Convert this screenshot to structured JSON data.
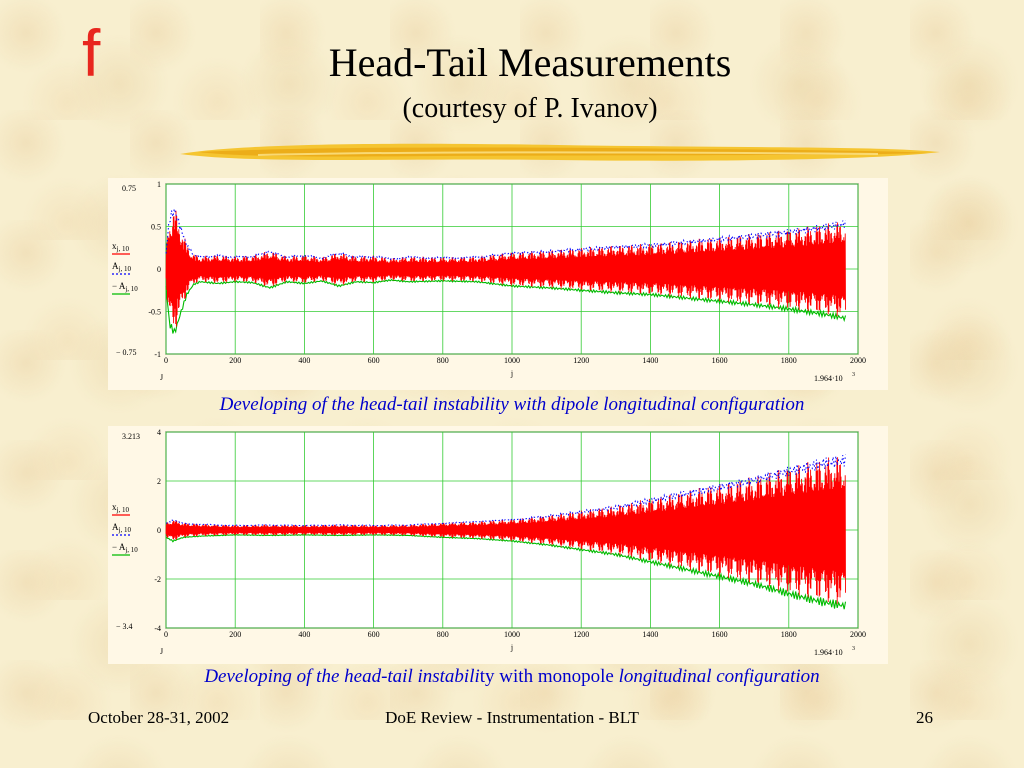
{
  "slide": {
    "title": "Head-Tail Measurements",
    "subtitle": "(courtesy of P. Ivanov)",
    "page_number": "26",
    "footer_left": "October 28-31, 2002",
    "footer_center": "DoE Review - Instrumentation - BLT"
  },
  "colors": {
    "signal": "#ff0000",
    "envelope_upper": "#0000ff",
    "envelope_lower": "#00bb00",
    "grid": "#33cc33",
    "caption": "#0000cc",
    "logo": "#e8261e"
  },
  "icons": {
    "logo": "f-logo-icon"
  },
  "chart_data": [
    {
      "type": "line",
      "caption": "Developing of the head-tail instability with dipole longitudinal configuration",
      "xlabel": "j",
      "xlim": [
        0,
        2000
      ],
      "ylim": [
        -1,
        1
      ],
      "x_ticks": [
        0,
        200,
        400,
        600,
        800,
        1000,
        1200,
        1400,
        1600,
        1800,
        2000
      ],
      "y_ticks": [
        -1,
        -0.5,
        0,
        0.5,
        1
      ],
      "grid": true,
      "top_bound_label": "0.75",
      "bottom_bound_label": "− 0.75",
      "x_range_left_label": "J",
      "x_range_right_label": "1.964·10",
      "x_range_right_exp": "3",
      "legend": [
        {
          "base": "x",
          "sub": "j, 10",
          "color": "#ff0000"
        },
        {
          "base": "A",
          "sub": "j, 10",
          "color": "#0000ff"
        },
        {
          "base": "− A",
          "sub": "j, 10",
          "color": "#00bb00"
        }
      ],
      "series": [
        {
          "name": "x",
          "color": "#ff0000"
        },
        {
          "name": "A",
          "color": "#0000ff",
          "style": "dotted"
        },
        {
          "name": "− A",
          "color": "#00bb00"
        }
      ],
      "envelope": {
        "x": [
          0,
          10,
          25,
          40,
          60,
          80,
          100,
          150,
          200,
          250,
          300,
          350,
          400,
          450,
          500,
          550,
          600,
          650,
          700,
          800,
          900,
          1000,
          1100,
          1200,
          1300,
          1400,
          1500,
          1600,
          1700,
          1800,
          1900,
          1964
        ],
        "values": [
          0.2,
          0.65,
          0.75,
          0.55,
          0.3,
          0.18,
          0.15,
          0.17,
          0.15,
          0.16,
          0.22,
          0.15,
          0.17,
          0.14,
          0.2,
          0.15,
          0.16,
          0.13,
          0.15,
          0.14,
          0.15,
          0.2,
          0.22,
          0.25,
          0.28,
          0.3,
          0.34,
          0.38,
          0.42,
          0.47,
          0.53,
          0.58
        ]
      },
      "samples": 1964
    },
    {
      "type": "line",
      "caption_italic_1": "Developing of the head-tail instabili",
      "caption_normal": "ty with monopole ",
      "caption_italic_2": "longitudinal configuration",
      "xlabel": "j",
      "xlim": [
        0,
        2000
      ],
      "ylim": [
        -4,
        4
      ],
      "x_ticks": [
        0,
        200,
        400,
        600,
        800,
        1000,
        1200,
        1400,
        1600,
        1800,
        2000
      ],
      "y_ticks": [
        -4,
        -2,
        0,
        2,
        4
      ],
      "grid": true,
      "top_bound_label": "3.213",
      "bottom_bound_label": "− 3.4",
      "x_range_left_label": "J",
      "x_range_right_label": "1.964·10",
      "x_range_right_exp": "3",
      "legend": [
        {
          "base": "x",
          "sub": "j, 10",
          "color": "#ff0000"
        },
        {
          "base": "A",
          "sub": "j, 10",
          "color": "#0000ff"
        },
        {
          "base": "− A",
          "sub": "j, 10",
          "color": "#00bb00"
        }
      ],
      "series": [
        {
          "name": "x",
          "color": "#ff0000"
        },
        {
          "name": "A",
          "color": "#0000ff",
          "style": "dotted"
        },
        {
          "name": "− A",
          "color": "#00bb00"
        }
      ],
      "envelope": {
        "x": [
          0,
          20,
          50,
          100,
          200,
          300,
          400,
          500,
          600,
          700,
          800,
          900,
          1000,
          1100,
          1200,
          1300,
          1400,
          1500,
          1600,
          1700,
          1800,
          1900,
          1964
        ],
        "values": [
          0.3,
          0.45,
          0.3,
          0.25,
          0.2,
          0.22,
          0.2,
          0.22,
          0.2,
          0.22,
          0.3,
          0.35,
          0.45,
          0.6,
          0.8,
          1.0,
          1.3,
          1.6,
          1.9,
          2.2,
          2.6,
          2.95,
          3.1
        ]
      },
      "samples": 1964
    }
  ]
}
